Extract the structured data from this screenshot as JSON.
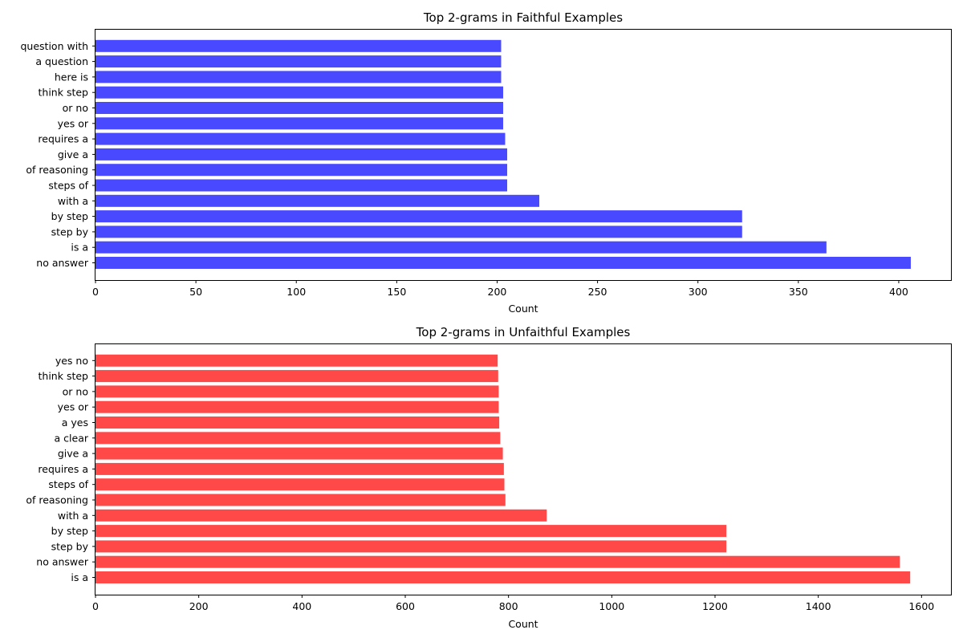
{
  "chart_data": [
    {
      "type": "bar",
      "orientation": "horizontal",
      "title": "Top 2-grams in Faithful Examples",
      "xlabel": "Count",
      "ylabel": "",
      "bar_color": "#4949ff",
      "xlim": [
        0,
        426
      ],
      "xticks": [
        0,
        50,
        100,
        150,
        200,
        250,
        300,
        350,
        400
      ],
      "categories": [
        "no answer",
        "is a",
        "step by",
        "by step",
        "with a",
        "steps of",
        "of reasoning",
        "give a",
        "requires a",
        "yes or",
        "or no",
        "think step",
        "here is",
        "a question",
        "question with"
      ],
      "values": [
        406,
        364,
        322,
        322,
        221,
        205,
        205,
        205,
        204,
        203,
        203,
        203,
        202,
        202,
        202
      ]
    },
    {
      "type": "bar",
      "orientation": "horizontal",
      "title": "Top 2-grams in Unfaithful Examples",
      "xlabel": "Count",
      "ylabel": "",
      "bar_color": "#ff4949",
      "xlim": [
        0,
        1657
      ],
      "xticks": [
        0,
        200,
        400,
        600,
        800,
        1000,
        1200,
        1400,
        1600
      ],
      "categories": [
        "is a",
        "no answer",
        "step by",
        "by step",
        "with a",
        "of reasoning",
        "steps of",
        "requires a",
        "give a",
        "a clear",
        "a yes",
        "yes or",
        "or no",
        "think step",
        "yes no"
      ],
      "values": [
        1578,
        1558,
        1222,
        1222,
        874,
        794,
        792,
        791,
        789,
        784,
        782,
        781,
        781,
        780,
        779
      ]
    }
  ]
}
